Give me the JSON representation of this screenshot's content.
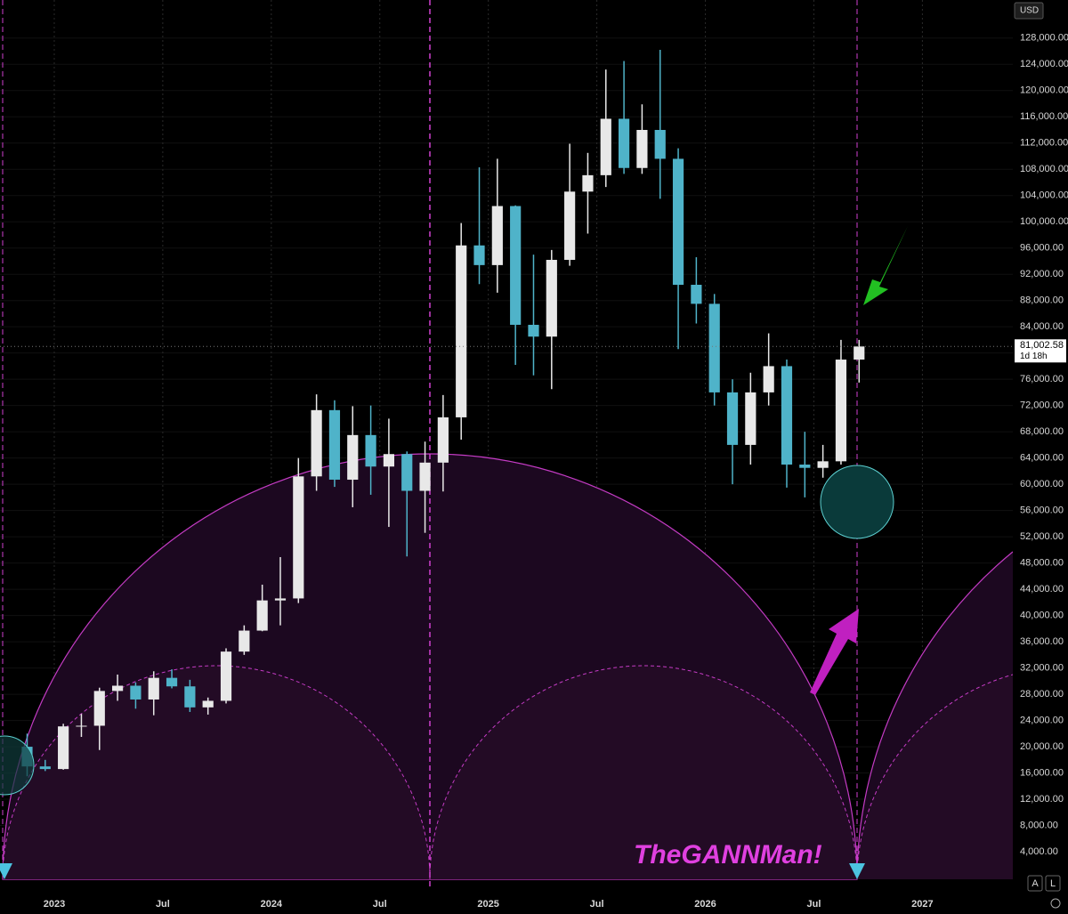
{
  "chart_data": {
    "type": "candlestick",
    "currency": "USD",
    "watermark": "TheGANNMan!",
    "buttons": [
      "A",
      "L"
    ],
    "last_price": {
      "value": 81002.58,
      "label": "81,002.58"
    },
    "countdown": "1d 18h",
    "up_color": "#e8e8e8",
    "down_color": "#4fb3c9",
    "x": [
      "2022-11",
      "2022-12",
      "2023-01",
      "2023-02",
      "2023-03",
      "2023-04",
      "2023-05",
      "2023-06",
      "2023-07",
      "2023-08",
      "2023-09",
      "2023-10",
      "2023-11",
      "2023-12",
      "2024-01",
      "2024-02",
      "2024-03",
      "2024-04",
      "2024-05",
      "2024-06",
      "2024-07",
      "2024-08",
      "2024-09",
      "2024-10",
      "2024-11",
      "2024-12",
      "2025-01",
      "2025-02",
      "2025-03",
      "2025-04",
      "2025-05",
      "2025-06",
      "2025-07",
      "2025-08",
      "2025-09",
      "2025-10",
      "2025-11",
      "2025-12",
      "2026-01",
      "2026-02",
      "2026-03",
      "2026-04",
      "2026-05",
      "2026-06",
      "2026-07",
      "2026-08",
      "2026-09"
    ],
    "open": [
      20000,
      17000,
      16600,
      23100,
      23200,
      28500,
      29300,
      27200,
      30500,
      29200,
      26000,
      27000,
      34500,
      37700,
      42300,
      42600,
      61200,
      71300,
      60700,
      67500,
      62700,
      64600,
      59000,
      63300,
      70200,
      96400,
      93400,
      102400,
      84300,
      82500,
      94200,
      104600,
      107100,
      115700,
      108200,
      114000,
      109600,
      90400,
      87500,
      74000,
      66000,
      74000,
      78000,
      63000,
      62500,
      63500,
      79000
    ],
    "high": [
      22000,
      18000,
      23500,
      25000,
      29000,
      31000,
      29800,
      31500,
      31800,
      30200,
      27500,
      35000,
      38500,
      44700,
      48900,
      64000,
      73700,
      72800,
      71900,
      72000,
      70000,
      65000,
      66500,
      73600,
      99800,
      108300,
      109600,
      102500,
      95000,
      95700,
      111900,
      110500,
      123200,
      124500,
      117900,
      126200,
      111200,
      94600,
      89000,
      76000,
      77000,
      83000,
      79000,
      68000,
      66000,
      82000,
      82000
    ],
    "low": [
      15500,
      16300,
      16500,
      21500,
      19500,
      27000,
      25800,
      24800,
      28900,
      25300,
      24900,
      26600,
      34000,
      37600,
      38500,
      41900,
      59000,
      59600,
      56500,
      58400,
      53500,
      49000,
      52600,
      58900,
      66800,
      90500,
      89200,
      78200,
      76600,
      74500,
      93300,
      98200,
      105300,
      107300,
      107300,
      103500,
      80600,
      84500,
      72000,
      60000,
      63000,
      72000,
      59500,
      58000,
      61000,
      63000,
      75500
    ],
    "close": [
      17000,
      16600,
      23100,
      23200,
      28500,
      29300,
      27200,
      30500,
      29200,
      26000,
      27000,
      34500,
      37700,
      42300,
      42600,
      61200,
      71300,
      60700,
      67500,
      62700,
      64600,
      59000,
      63300,
      70200,
      96400,
      93400,
      102400,
      84300,
      82500,
      94200,
      104600,
      107100,
      115700,
      108200,
      114000,
      109600,
      90400,
      87500,
      74000,
      66000,
      74000,
      78000,
      63000,
      62500,
      63500,
      79000,
      81002.58
    ],
    "xlim": [
      "2022-10",
      "2027-06"
    ],
    "xticks": [
      {
        "value": "2023-01",
        "label": "2023"
      },
      {
        "value": "2023-07",
        "label": "Jul"
      },
      {
        "value": "2024-01",
        "label": "2024"
      },
      {
        "value": "2024-07",
        "label": "Jul"
      },
      {
        "value": "2025-01",
        "label": "2025"
      },
      {
        "value": "2025-07",
        "label": "Jul"
      },
      {
        "value": "2026-01",
        "label": "2026"
      },
      {
        "value": "2026-07",
        "label": "Jul"
      },
      {
        "value": "2027-01",
        "label": "2027"
      }
    ],
    "ylim": [
      -200,
      133800
    ],
    "yticks": [
      {
        "value": 4000,
        "label": "4,000.00"
      },
      {
        "value": 8000,
        "label": "8,000.00"
      },
      {
        "value": 12000,
        "label": "12,000.00"
      },
      {
        "value": 16000,
        "label": "16,000.00"
      },
      {
        "value": 20000,
        "label": "20,000.00"
      },
      {
        "value": 24000,
        "label": "24,000.00"
      },
      {
        "value": 28000,
        "label": "28,000.00"
      },
      {
        "value": 32000,
        "label": "32,000.00"
      },
      {
        "value": 36000,
        "label": "36,000.00"
      },
      {
        "value": 40000,
        "label": "40,000.00"
      },
      {
        "value": 44000,
        "label": "44,000.00"
      },
      {
        "value": 48000,
        "label": "48,000.00"
      },
      {
        "value": 52000,
        "label": "52,000.00"
      },
      {
        "value": 56000,
        "label": "56,000.00"
      },
      {
        "value": 60000,
        "label": "60,000.00"
      },
      {
        "value": 64000,
        "label": "64,000.00"
      },
      {
        "value": 68000,
        "label": "68,000.00"
      },
      {
        "value": 72000,
        "label": "72,000.00"
      },
      {
        "value": 76000,
        "label": "76,000.00"
      },
      {
        "value": 80000,
        "label": "80,000.00"
      },
      {
        "value": 84000,
        "label": "84,000.00"
      },
      {
        "value": 88000,
        "label": "88,000.00"
      },
      {
        "value": 92000,
        "label": "92,000.00"
      },
      {
        "value": 96000,
        "label": "96,000.00"
      },
      {
        "value": 100000,
        "label": "100,000.00"
      },
      {
        "value": 104000,
        "label": "104,000.00"
      },
      {
        "value": 108000,
        "label": "108,000.00"
      },
      {
        "value": 112000,
        "label": "112,000.00"
      },
      {
        "value": 116000,
        "label": "116,000.00"
      },
      {
        "value": 120000,
        "label": "120,000.00"
      },
      {
        "value": 124000,
        "label": "124,000.00"
      },
      {
        "value": 128000,
        "label": "128,000.00"
      }
    ],
    "grid": true
  }
}
